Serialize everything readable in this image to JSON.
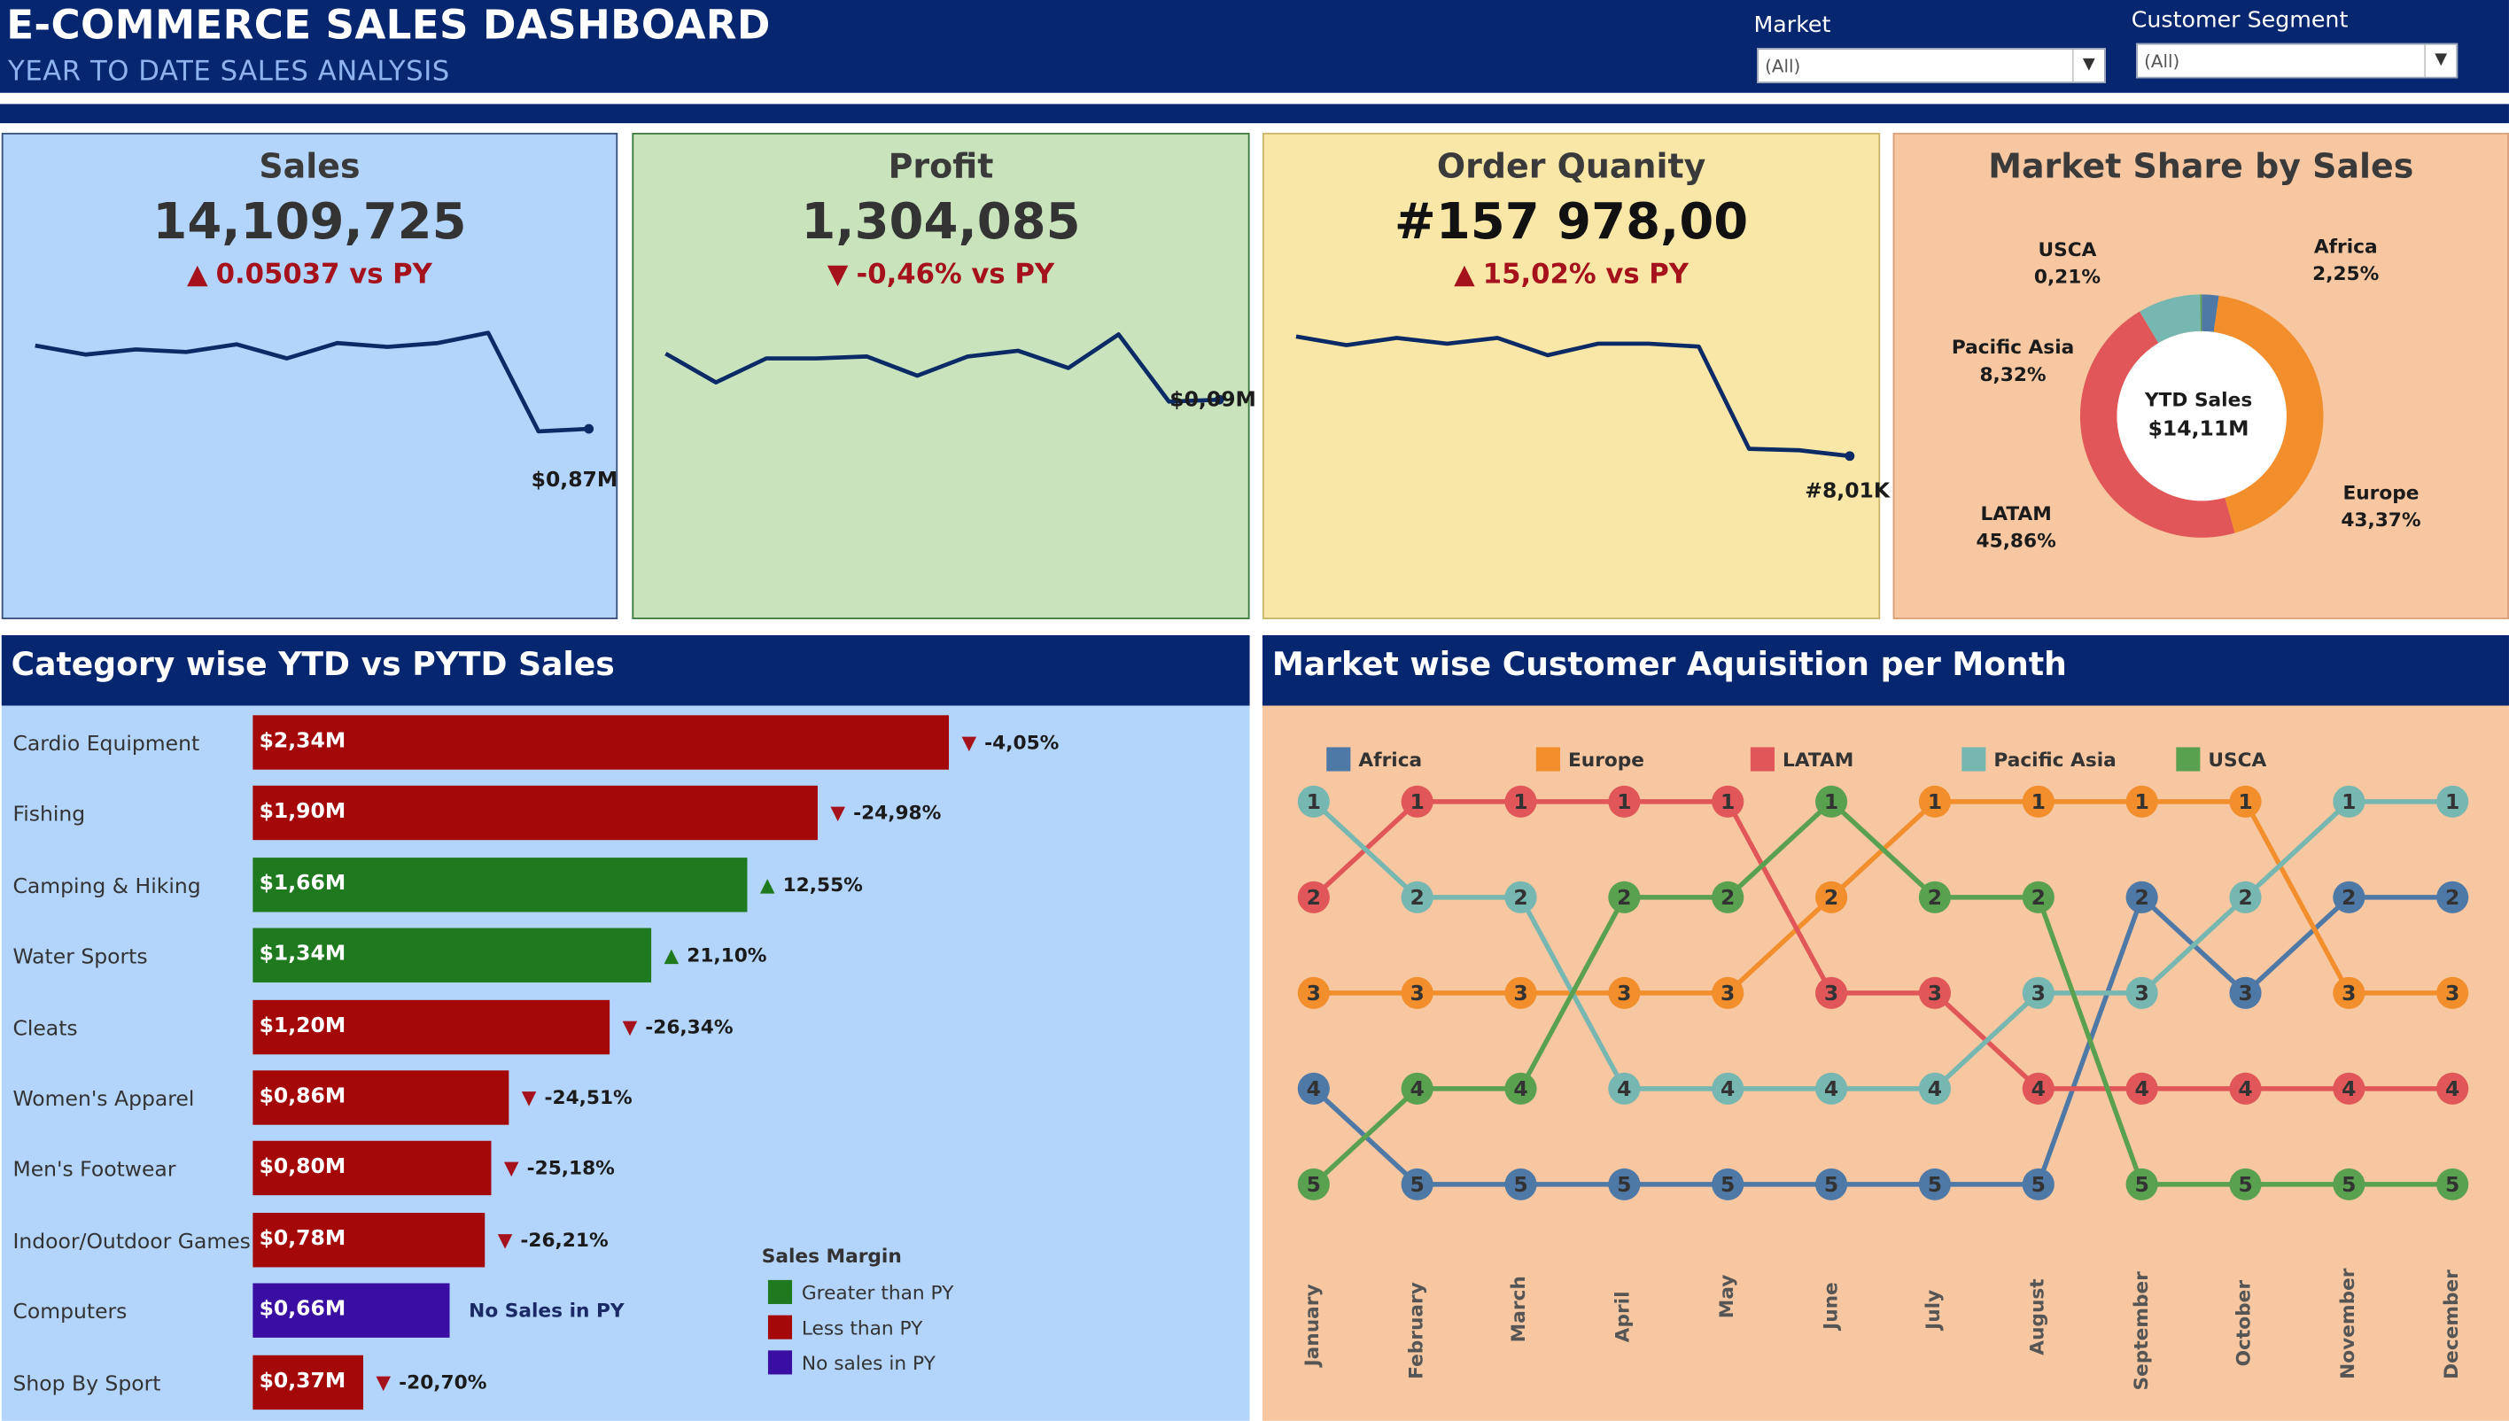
{
  "header": {
    "title": "E-COMMERCE SALES DASHBOARD",
    "subtitle": "YEAR TO DATE SALES ANALYSIS",
    "filters": [
      {
        "label": "Market",
        "value": "(All)"
      },
      {
        "label": "Customer Segment",
        "value": "(All)"
      }
    ]
  },
  "colors": {
    "navy": "#062670",
    "sales_bg": "#b3d4fb",
    "profit_bg": "#c9e4bc",
    "orders_bg": "#f9e7a7",
    "market_bg": "#f6c7a1",
    "greater": "#1f7a1f",
    "less": "#a50808",
    "none": "#3a0da3"
  },
  "kpis": [
    {
      "title": "Sales",
      "value": "14,109,725",
      "delta_arrow": "▲",
      "delta": "0.05037 vs PY",
      "end_label": "$0,87M",
      "trend": [
        0.85,
        0.78,
        0.82,
        0.8,
        0.86,
        0.75,
        0.87,
        0.84,
        0.87,
        0.95,
        0.18,
        0.2
      ]
    },
    {
      "title": "Profit",
      "value": "1,304,085",
      "delta_arrow": "▼",
      "delta": "-0,46% vs PY",
      "end_label": "$0,09M",
      "trend": [
        0.75,
        0.45,
        0.7,
        0.7,
        0.72,
        0.52,
        0.72,
        0.78,
        0.6,
        0.95,
        0.25,
        0.27
      ]
    },
    {
      "title": "Order Quanity",
      "value": "#157 978,00",
      "delta_arrow": "▲",
      "delta": "15,02% vs PY",
      "end_label": "#8,01K",
      "trend": [
        0.93,
        0.87,
        0.92,
        0.88,
        0.92,
        0.8,
        0.88,
        0.88,
        0.86,
        0.15,
        0.14,
        0.1
      ]
    }
  ],
  "market_share": {
    "title": "Market Share by Sales",
    "center_label": "YTD Sales",
    "center_value": "$14,11M",
    "slices": [
      {
        "name": "Africa",
        "pct": "2,25%",
        "value": 2.25,
        "color": "#4e79a7"
      },
      {
        "name": "Europe",
        "pct": "43,37%",
        "value": 43.37,
        "color": "#f28e2b"
      },
      {
        "name": "LATAM",
        "pct": "45,86%",
        "value": 45.86,
        "color": "#e15759"
      },
      {
        "name": "Pacific Asia",
        "pct": "8,32%",
        "value": 8.32,
        "color": "#76b7b2"
      },
      {
        "name": "USCA",
        "pct": "0,21%",
        "value": 0.21,
        "color": "#59a14f"
      }
    ]
  },
  "category_chart": {
    "title": "Category wise YTD vs PYTD Sales",
    "rows": [
      {
        "category": "Cardio Equipment",
        "value": 2.34,
        "label": "$2,34M",
        "status": "less",
        "change": "-4,05%"
      },
      {
        "category": "Fishing",
        "value": 1.9,
        "label": "$1,90M",
        "status": "less",
        "change": "-24,98%"
      },
      {
        "category": "Camping & Hiking",
        "value": 1.66,
        "label": "$1,66M",
        "status": "greater",
        "change": "12,55%"
      },
      {
        "category": "Water Sports",
        "value": 1.34,
        "label": "$1,34M",
        "status": "greater",
        "change": "21,10%"
      },
      {
        "category": "Cleats",
        "value": 1.2,
        "label": "$1,20M",
        "status": "less",
        "change": "-26,34%"
      },
      {
        "category": "Women's Apparel",
        "value": 0.86,
        "label": "$0,86M",
        "status": "less",
        "change": "-24,51%"
      },
      {
        "category": "Men's Footwear",
        "value": 0.8,
        "label": "$0,80M",
        "status": "less",
        "change": "-25,18%"
      },
      {
        "category": "Indoor/Outdoor Games",
        "value": 0.78,
        "label": "$0,78M",
        "status": "less",
        "change": "-26,21%"
      },
      {
        "category": "Computers",
        "value": 0.66,
        "label": "$0,66M",
        "status": "none",
        "change": "No Sales in PY"
      },
      {
        "category": "Shop By Sport",
        "value": 0.37,
        "label": "$0,37M",
        "status": "less",
        "change": "-20,70%"
      }
    ],
    "legend": {
      "title": "Sales Margin",
      "items": [
        {
          "key": "greater",
          "label": "Greater than PY"
        },
        {
          "key": "less",
          "label": "Less than PY"
        },
        {
          "key": "none",
          "label": "No sales in PY"
        }
      ]
    }
  },
  "chart_data": {
    "type": "line",
    "title": "Market wise Customer Aquisition per Month",
    "x": [
      "January",
      "February",
      "March",
      "April",
      "May",
      "June",
      "July",
      "August",
      "September",
      "October",
      "November",
      "December"
    ],
    "series": [
      {
        "name": "Africa",
        "color": "#4e79a7",
        "values": [
          4,
          5,
          5,
          5,
          5,
          5,
          5,
          5,
          2,
          3,
          2,
          2
        ]
      },
      {
        "name": "Europe",
        "color": "#f28e2b",
        "values": [
          3,
          3,
          3,
          3,
          3,
          2,
          1,
          1,
          1,
          1,
          3,
          3
        ]
      },
      {
        "name": "LATAM",
        "color": "#e15759",
        "values": [
          2,
          1,
          1,
          1,
          1,
          3,
          3,
          4,
          4,
          4,
          4,
          4
        ]
      },
      {
        "name": "Pacific Asia",
        "color": "#76b7b2",
        "values": [
          1,
          2,
          2,
          4,
          4,
          4,
          4,
          3,
          3,
          2,
          1,
          1
        ]
      },
      {
        "name": "USCA",
        "color": "#59a14f",
        "values": [
          5,
          4,
          4,
          2,
          2,
          1,
          2,
          2,
          5,
          5,
          5,
          5
        ]
      }
    ],
    "ylim": [
      1,
      5
    ],
    "legend_position": "top"
  }
}
